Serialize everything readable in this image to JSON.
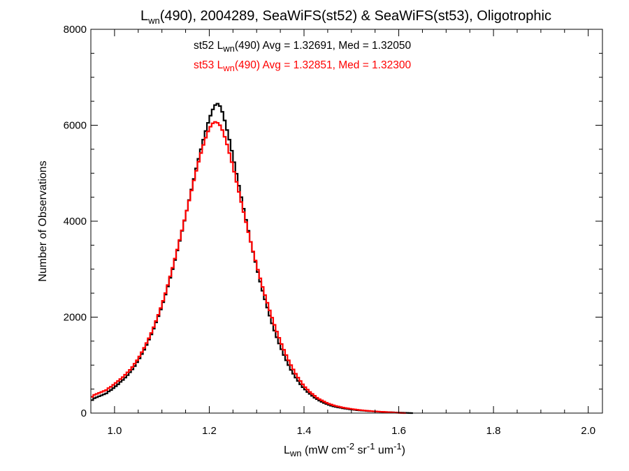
{
  "chart_data": {
    "type": "histogram-step",
    "title": {
      "base": "L",
      "sub": "wn",
      "rest": "(490), 2004289, SeaWiFS(st52) & SeaWiFS(st53), Oligotrophic"
    },
    "xlabel": {
      "base": "L",
      "sub": "wn",
      "p1": " (mW cm",
      "sup1": "-2",
      "p2": " sr",
      "sup2": "-1",
      "p3": " um",
      "sup3": "-1",
      "p4": ")"
    },
    "ylabel": "Number of Observations",
    "xlim": [
      0.95,
      2.03
    ],
    "ylim": [
      0,
      8000
    ],
    "xticks": [
      "1.0",
      "1.2",
      "1.4",
      "1.6",
      "1.8",
      "2.0"
    ],
    "xtick_values": [
      1.0,
      1.2,
      1.4,
      1.6,
      1.8,
      2.0
    ],
    "yticks": [
      "0",
      "2000",
      "4000",
      "6000",
      "8000"
    ],
    "ytick_values": [
      0,
      2000,
      4000,
      6000,
      8000
    ],
    "bin_width": 0.005,
    "bin_start": 0.95,
    "annotations": [
      {
        "pre": "st52 L",
        "sub": "wn",
        "post": "(490) Avg = 1.32691, Med = 1.32050",
        "color": "#000000"
      },
      {
        "pre": "st53 L",
        "sub": "wn",
        "post": "(490) Avg = 1.32851, Med = 1.32300",
        "color": "#ff0000"
      }
    ],
    "series": [
      {
        "key": "st52",
        "color": "#000000",
        "values": [
          270,
          310,
          330,
          350,
          370,
          390,
          410,
          450,
          480,
          520,
          560,
          600,
          650,
          690,
          740,
          790,
          850,
          910,
          980,
          1060,
          1140,
          1230,
          1320,
          1420,
          1530,
          1640,
          1760,
          1890,
          2020,
          2160,
          2310,
          2470,
          2640,
          2820,
          3000,
          3190,
          3390,
          3590,
          3800,
          4010,
          4220,
          4440,
          4660,
          4880,
          5100,
          5300,
          5500,
          5700,
          5880,
          6050,
          6200,
          6330,
          6420,
          6450,
          6400,
          6280,
          6100,
          5900,
          5700,
          5470,
          5230,
          4990,
          4740,
          4500,
          4260,
          4030,
          3800,
          3570,
          3360,
          3150,
          2940,
          2740,
          2550,
          2370,
          2200,
          2030,
          1870,
          1720,
          1580,
          1450,
          1330,
          1210,
          1100,
          1000,
          900,
          820,
          740,
          670,
          600,
          540,
          490,
          440,
          400,
          360,
          320,
          290,
          260,
          235,
          210,
          190,
          170,
          155,
          140,
          128,
          118,
          110,
          100,
          92,
          85,
          78,
          72,
          66,
          60,
          56,
          52,
          48,
          44,
          40,
          37,
          34,
          31,
          28,
          26,
          24,
          22,
          20,
          18,
          16,
          14,
          12,
          10,
          8,
          6,
          4,
          2,
          0
        ]
      },
      {
        "key": "st53",
        "color": "#ff0000",
        "values": [
          340,
          380,
          400,
          420,
          440,
          460,
          480,
          520,
          550,
          590,
          630,
          670,
          710,
          750,
          800,
          850,
          900,
          960,
          1030,
          1100,
          1180,
          1270,
          1360,
          1460,
          1560,
          1670,
          1790,
          1920,
          2050,
          2190,
          2340,
          2500,
          2670,
          2850,
          3030,
          3220,
          3410,
          3610,
          3810,
          4020,
          4220,
          4430,
          4640,
          4850,
          5050,
          5240,
          5420,
          5590,
          5740,
          5870,
          5970,
          6040,
          6070,
          6050,
          6000,
          5900,
          5760,
          5600,
          5420,
          5230,
          5030,
          4820,
          4610,
          4400,
          4190,
          3980,
          3770,
          3570,
          3370,
          3180,
          2990,
          2810,
          2630,
          2460,
          2300,
          2140,
          1990,
          1840,
          1700,
          1570,
          1440,
          1320,
          1210,
          1100,
          1000,
          910,
          820,
          740,
          670,
          600,
          540,
          490,
          440,
          400,
          360,
          320,
          290,
          265,
          240,
          215,
          195,
          178,
          162,
          148,
          136,
          125,
          115,
          106,
          98,
          90,
          83,
          76,
          70,
          64,
          59,
          54,
          49,
          45,
          41,
          37,
          34,
          31,
          28,
          25,
          22,
          19,
          16,
          13,
          10,
          7,
          4,
          1,
          0
        ]
      }
    ]
  }
}
